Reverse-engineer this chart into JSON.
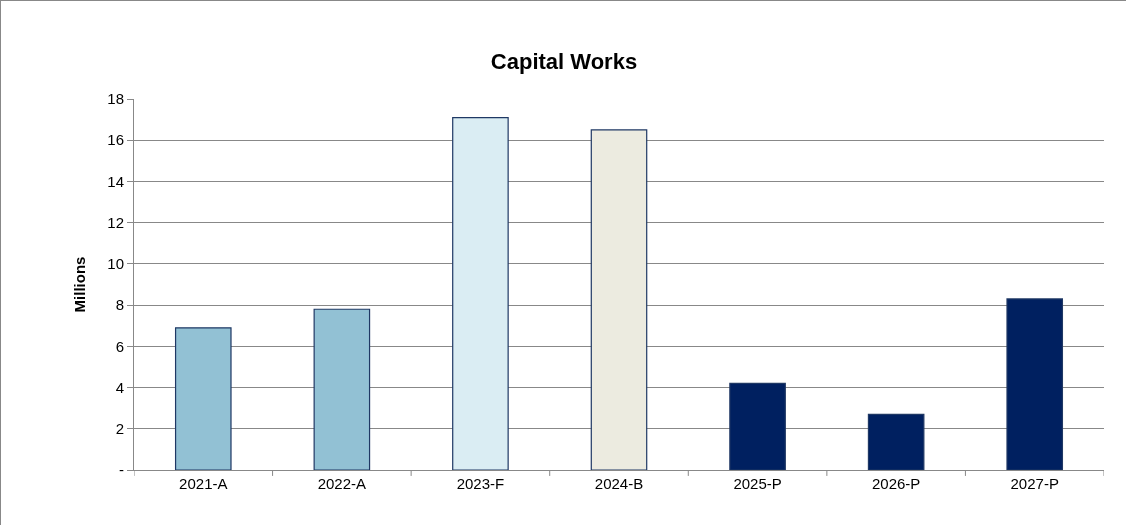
{
  "chart_data": {
    "type": "bar",
    "title": "Capital Works",
    "ylabel": "Millions",
    "categories": [
      "2021-A",
      "2022-A",
      "2023-F",
      "2024-B",
      "2025-P",
      "2026-P",
      "2027-P"
    ],
    "values": [
      6.9,
      7.8,
      17.1,
      16.5,
      4.2,
      2.7,
      8.3
    ],
    "colors": [
      "#92c1d4",
      "#92c1d4",
      "#daedf3",
      "#ecebe0",
      "#002060",
      "#002060",
      "#002060"
    ],
    "ylim": [
      0,
      18
    ],
    "yticks": [
      {
        "value": 0,
        "label": "-"
      },
      2,
      4,
      6,
      8,
      10,
      12,
      14,
      16,
      18
    ],
    "grid": "y"
  }
}
